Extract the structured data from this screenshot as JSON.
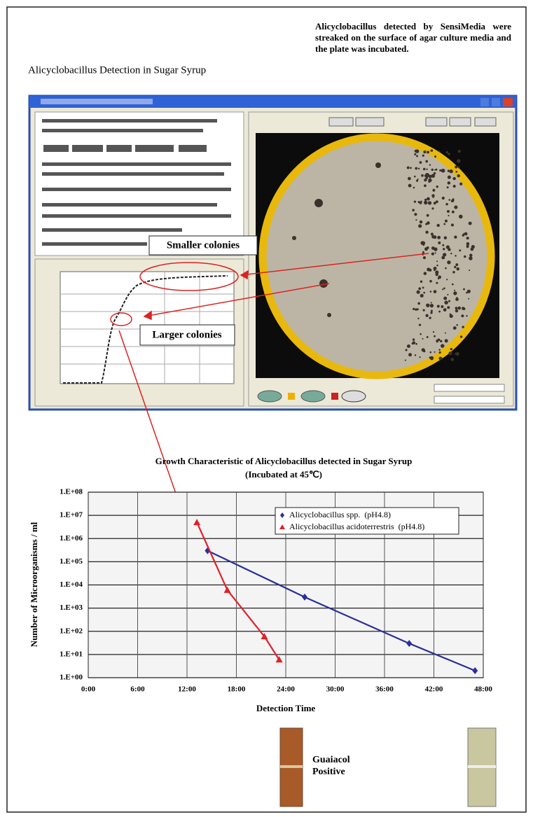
{
  "page": {
    "heading": "Alicyclobacillus Detection in Sugar Syrup",
    "note": "Alicyclobacillus detected by SensiMedia were streaked on the surface of agar culture media and the plate was incubated.",
    "callout_small": "Smaller colonies",
    "callout_large": "Larger colonies",
    "tube_label": "Guaiacol Positive"
  },
  "chart_data": {
    "type": "line",
    "title": "Growth Characteristic of Alicyclobacillus detected in Sugar Syrup",
    "subtitle": "(Incubated at 45℃)",
    "x_label": "Detection Time",
    "y_label": "Number of Microorganisms / ml",
    "log_y": true,
    "grid": true,
    "legend": "top-right",
    "xlim": [
      0,
      48
    ],
    "xticks": [
      {
        "value": 0,
        "label": "0:00"
      },
      {
        "value": 6,
        "label": "6:00"
      },
      {
        "value": 12,
        "label": "12:00"
      },
      {
        "value": 18,
        "label": "18:00"
      },
      {
        "value": 24,
        "label": "24:00"
      },
      {
        "value": 30,
        "label": "30:00"
      },
      {
        "value": 36,
        "label": "36:00"
      },
      {
        "value": 42,
        "label": "42:00"
      },
      {
        "value": 48,
        "label": "48:00"
      }
    ],
    "ylim": [
      1,
      100000000
    ],
    "yticks": [
      {
        "value": 1,
        "label": "1.E+00"
      },
      {
        "value": 10,
        "label": "1.E+01"
      },
      {
        "value": 100,
        "label": "1.E+02"
      },
      {
        "value": 1000,
        "label": "1.E+03"
      },
      {
        "value": 10000,
        "label": "1.E+04"
      },
      {
        "value": 100000,
        "label": "1.E+05"
      },
      {
        "value": 1000000,
        "label": "1.E+06"
      },
      {
        "value": 10000000,
        "label": "1.E+07"
      },
      {
        "value": 100000000,
        "label": "1.E+08"
      }
    ],
    "series": [
      {
        "name": "Alicyclobacillus spp.  (pH4.8)",
        "color": "#2b2f9a",
        "marker": "diamond",
        "x": [
          14.5,
          26.3,
          39,
          47
        ],
        "values": [
          300000,
          3000,
          30,
          2
        ]
      },
      {
        "name": "Alicyclobacillus acidoterrestris  (pH4.8)",
        "color": "#e0202a",
        "marker": "triangle",
        "x": [
          13.2,
          16.9,
          21.4,
          23.2
        ],
        "values": [
          5000000,
          6000,
          60,
          6
        ]
      }
    ]
  }
}
